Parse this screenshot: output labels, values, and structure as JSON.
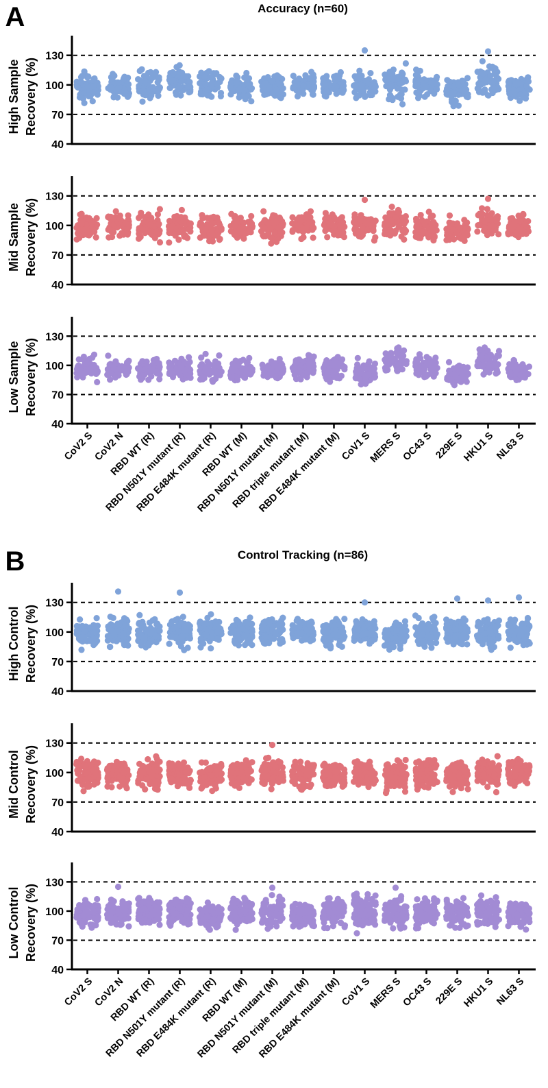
{
  "panels": [
    {
      "letter": "A",
      "title": "Accuracy (n=60)",
      "n": 60,
      "categories": [
        "CoV2 S",
        "CoV2 N",
        "RBD WT (R)",
        "RBD N501Y mutant (R)",
        "RBD E484K mutant (R)",
        "RBD WT (M)",
        "RBD N501Y mutant (M)",
        "RBD triple mutant (M)",
        "RBD E484K mutant (M)",
        "CoV1 S",
        "MERS S",
        "OC43 S",
        "229E S",
        "HKU1 S",
        "NL63 S"
      ],
      "subplots": [
        {
          "ylabel_line1": "High Sample",
          "ylabel_line2": "Recovery (%)",
          "level": "high",
          "means": [
            98,
            99,
            99,
            103,
            101,
            98,
            98,
            101,
            100,
            100,
            100,
            100,
            94,
            106,
            97
          ],
          "spreads": [
            10,
            10,
            11,
            11,
            10,
            10,
            11,
            10,
            9,
            11,
            12,
            9,
            10,
            12,
            9
          ],
          "highs": [
            null,
            null,
            null,
            null,
            null,
            null,
            null,
            null,
            null,
            135,
            null,
            null,
            null,
            134,
            null
          ]
        },
        {
          "ylabel_line1": "Mid Sample",
          "ylabel_line2": "Recovery (%)",
          "level": "mid",
          "means": [
            98,
            99,
            99,
            98,
            98,
            98,
            99,
            100,
            100,
            100,
            102,
            98,
            94,
            104,
            99
          ],
          "spreads": [
            11,
            10,
            10,
            10,
            10,
            11,
            11,
            10,
            10,
            11,
            10,
            10,
            9,
            10,
            9
          ],
          "highs": [
            null,
            null,
            null,
            null,
            null,
            null,
            null,
            null,
            null,
            126,
            null,
            null,
            null,
            127,
            null
          ]
        },
        {
          "ylabel_line1": "Low Sample",
          "ylabel_line2": "Recovery (%)",
          "level": "low",
          "means": [
            97,
            96,
            96,
            96,
            95,
            95,
            96,
            99,
            98,
            92,
            105,
            98,
            91,
            104,
            95
          ],
          "spreads": [
            10,
            9,
            8,
            8,
            9,
            9,
            8,
            9,
            9,
            11,
            10,
            9,
            8,
            10,
            8
          ],
          "highs": [
            null,
            null,
            null,
            null,
            null,
            null,
            null,
            null,
            null,
            null,
            null,
            null,
            null,
            null,
            null
          ]
        }
      ]
    },
    {
      "letter": "B",
      "title": "Control Tracking (n=86)",
      "n": 86,
      "categories": [
        "CoV2 S",
        "CoV2 N",
        "RBD WT (R)",
        "RBD N501Y mutant (R)",
        "RBD E484K mutant (R)",
        "RBD WT (M)",
        "RBD N501Y mutant (M)",
        "RBD triple mutant (M)",
        "RBD E484K mutant (M)",
        "CoV1 S",
        "MERS S",
        "OC43 S",
        "229E S",
        "HKU1 S",
        "NL63 S"
      ],
      "subplots": [
        {
          "ylabel_line1": "High Control",
          "ylabel_line2": "Recovery (%)",
          "level": "high",
          "means": [
            99,
            100,
            99,
            100,
            99,
            100,
            100,
            100,
            99,
            100,
            97,
            99,
            100,
            100,
            100
          ],
          "spreads": [
            10,
            11,
            10,
            12,
            10,
            11,
            10,
            10,
            10,
            11,
            10,
            10,
            11,
            12,
            11
          ],
          "highs": [
            null,
            141,
            null,
            140,
            null,
            null,
            null,
            null,
            null,
            130,
            null,
            null,
            134,
            132,
            135
          ]
        },
        {
          "ylabel_line1": "Mid Control",
          "ylabel_line2": "Recovery (%)",
          "level": "mid",
          "means": [
            99,
            98,
            98,
            98,
            97,
            99,
            99,
            98,
            97,
            99,
            97,
            99,
            98,
            98,
            100
          ],
          "spreads": [
            11,
            10,
            11,
            10,
            10,
            11,
            11,
            10,
            10,
            10,
            11,
            11,
            10,
            11,
            10
          ],
          "highs": [
            null,
            null,
            null,
            null,
            null,
            null,
            128,
            null,
            null,
            null,
            null,
            null,
            null,
            null,
            null
          ]
        },
        {
          "ylabel_line1": "Low Control",
          "ylabel_line2": "Recovery (%)",
          "level": "low",
          "means": [
            99,
            98,
            99,
            100,
            96,
            99,
            99,
            96,
            98,
            100,
            98,
            98,
            98,
            98,
            98
          ],
          "spreads": [
            12,
            11,
            11,
            12,
            10,
            11,
            12,
            10,
            11,
            14,
            12,
            11,
            11,
            11,
            10
          ],
          "highs": [
            null,
            125,
            null,
            null,
            null,
            null,
            124,
            null,
            null,
            null,
            124,
            null,
            null,
            null,
            null
          ]
        }
      ]
    }
  ],
  "chart_data": [
    {
      "type": "scatter",
      "title": "Accuracy (n=60)",
      "panel": "A",
      "subplots": [
        "High Sample Recovery (%)",
        "Mid Sample Recovery (%)",
        "Low Sample Recovery (%)"
      ],
      "ylim": [
        40,
        150
      ],
      "yticks": [
        40,
        70,
        100,
        130
      ],
      "reference_lines": [
        70,
        130
      ],
      "legend": "none"
    },
    {
      "type": "scatter",
      "title": "Control Tracking (n=86)",
      "panel": "B",
      "subplots": [
        "High Control Recovery (%)",
        "Mid Control Recovery (%)",
        "Low Control Recovery (%)"
      ],
      "ylim": [
        40,
        150
      ],
      "yticks": [
        40,
        70,
        100,
        130
      ],
      "reference_lines": [
        70,
        130
      ],
      "legend": "none"
    }
  ],
  "colors": {
    "high": "#7fa3d9",
    "mid": "#e0737a",
    "low": "#a28bd4",
    "axis": "#000000"
  }
}
